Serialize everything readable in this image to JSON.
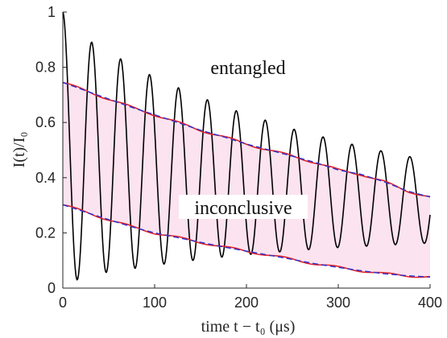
{
  "chart_data": {
    "type": "line",
    "xlabel": "time t − t₀ (μs)",
    "ylabel": "I(t)/I₀",
    "xlim": [
      0,
      400
    ],
    "ylim": [
      0,
      1
    ],
    "x_ticks": [
      "0",
      "100",
      "200",
      "300",
      "400"
    ],
    "y_ticks": [
      "0",
      "0.2",
      "0.4",
      "0.6",
      "0.8",
      "1"
    ],
    "grid": false,
    "annotations": {
      "upper_region": "entangled",
      "middle_region": "inconclusive"
    },
    "band": {
      "x": [
        0,
        25,
        50,
        75,
        100,
        125,
        150,
        175,
        200,
        225,
        250,
        275,
        300,
        325,
        350,
        375,
        400
      ],
      "upper": [
        0.745,
        0.715,
        0.685,
        0.655,
        0.628,
        0.6,
        0.572,
        0.548,
        0.522,
        0.5,
        0.478,
        0.455,
        0.428,
        0.412,
        0.385,
        0.352,
        0.33
      ],
      "lower": [
        0.302,
        0.275,
        0.248,
        0.222,
        0.2,
        0.183,
        0.166,
        0.149,
        0.134,
        0.119,
        0.104,
        0.088,
        0.075,
        0.063,
        0.052,
        0.045,
        0.04
      ]
    },
    "oscillation": {
      "period": 31.5,
      "amplitude": [
        0.5,
        0.428,
        0.397,
        0.37,
        0.34,
        0.317,
        0.294,
        0.273,
        0.254,
        0.238,
        0.221,
        0.207,
        0.193,
        0.181,
        0.17,
        0.159,
        0.15
      ],
      "center": [
        0.5,
        0.476,
        0.455,
        0.44,
        0.423,
        0.41,
        0.398,
        0.386,
        0.375,
        0.366,
        0.356,
        0.348,
        0.34,
        0.332,
        0.325,
        0.319,
        0.313
      ]
    },
    "colors": {
      "band_fill": "#fbe3ef",
      "boundary_red": "#e0242a",
      "boundary_blue": "#2b2fd0",
      "signal": "#000000",
      "axis": "#262626"
    }
  }
}
